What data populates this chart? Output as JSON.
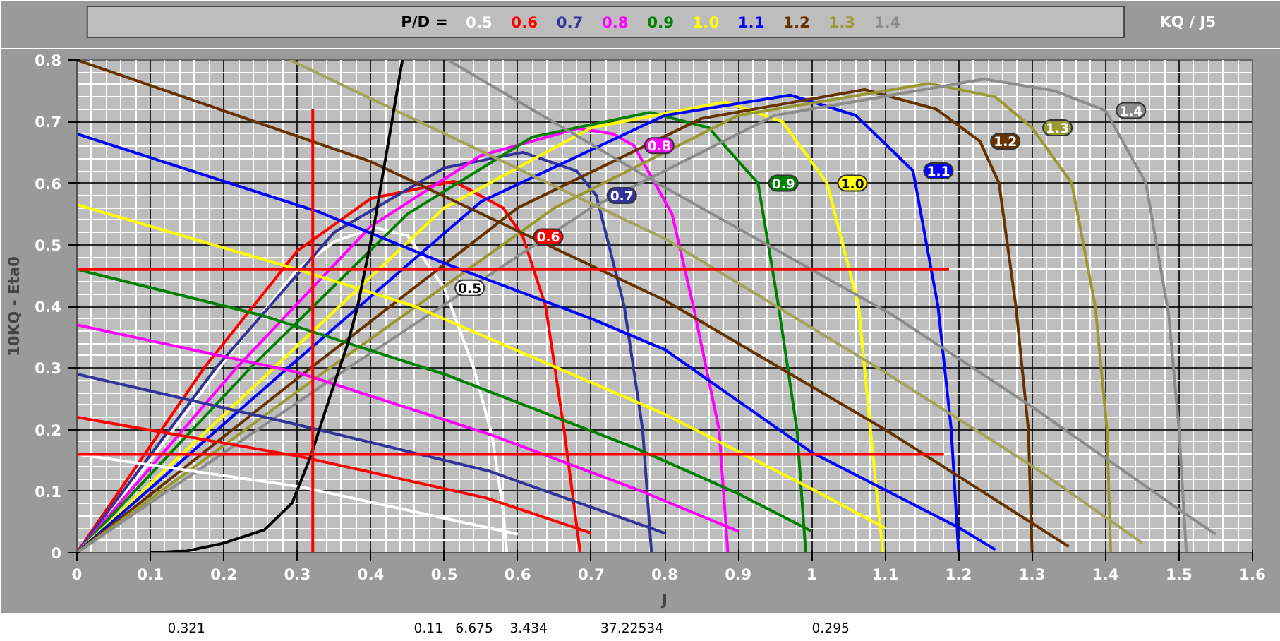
{
  "chart_data": {
    "type": "line",
    "xlabel": "J",
    "ylabel": "10KQ - Eta0",
    "legend_title": "P/D =",
    "legend": "top",
    "grid": true,
    "xlim": [
      0,
      1.6
    ],
    "ylim": [
      0,
      0.8
    ],
    "xticks": [
      0,
      0.1,
      0.2,
      0.3,
      0.4,
      0.5,
      0.6,
      0.7,
      0.8,
      0.9,
      1,
      1.1,
      1.2,
      1.3,
      1.4,
      1.5,
      1.6
    ],
    "yticks": [
      0,
      0.1,
      0.2,
      0.3,
      0.4,
      0.5,
      0.6,
      0.7,
      0.8
    ],
    "series": [
      {
        "name": "0.5",
        "color": "#ffffff",
        "x": [
          0,
          0.1,
          0.2,
          0.3,
          0.35,
          0.405,
          0.45,
          0.5,
          0.54,
          0.565,
          0.58,
          0.585
        ],
        "values": [
          0,
          0.15,
          0.31,
          0.46,
          0.505,
          0.528,
          0.515,
          0.43,
          0.3,
          0.19,
          0.07,
          0
        ]
      },
      {
        "name": "0.6",
        "color": "#ff0000",
        "x": [
          0,
          0.173,
          0.3,
          0.4,
          0.513,
          0.58,
          0.607,
          0.638,
          0.663,
          0.685
        ],
        "values": [
          0,
          0.3,
          0.49,
          0.575,
          0.603,
          0.56,
          0.513,
          0.4,
          0.2,
          0
        ]
      },
      {
        "name": "0.7",
        "color": "#333399",
        "x": [
          0,
          0.189,
          0.35,
          0.5,
          0.607,
          0.68,
          0.707,
          0.745,
          0.77,
          0.782
        ],
        "values": [
          0,
          0.3,
          0.52,
          0.625,
          0.65,
          0.62,
          0.58,
          0.4,
          0.2,
          0
        ]
      },
      {
        "name": "0.8",
        "color": "#ff00ff",
        "x": [
          0,
          0.217,
          0.4,
          0.55,
          0.682,
          0.73,
          0.758,
          0.81,
          0.839,
          0.874,
          0.886
        ],
        "values": [
          0,
          0.3,
          0.53,
          0.645,
          0.689,
          0.68,
          0.661,
          0.55,
          0.4,
          0.2,
          0
        ]
      },
      {
        "name": "0.9",
        "color": "#008000",
        "x": [
          0,
          0.236,
          0.45,
          0.62,
          0.78,
          0.86,
          0.927,
          0.955,
          0.98,
          0.992
        ],
        "values": [
          0,
          0.3,
          0.55,
          0.675,
          0.715,
          0.69,
          0.6,
          0.4,
          0.2,
          0
        ]
      },
      {
        "name": "1.0",
        "color": "#ffff00",
        "x": [
          0,
          0.268,
          0.5,
          0.7,
          0.883,
          0.96,
          1.021,
          1.064,
          1.08,
          1.097
        ],
        "values": [
          0,
          0.3,
          0.56,
          0.69,
          0.732,
          0.7,
          0.6,
          0.4,
          0.2,
          0
        ]
      },
      {
        "name": "1.1",
        "color": "#0000ff",
        "x": [
          0,
          0.287,
          0.55,
          0.8,
          0.971,
          1.06,
          1.138,
          1.172,
          1.19,
          1.2
        ],
        "values": [
          0,
          0.3,
          0.57,
          0.71,
          0.743,
          0.71,
          0.62,
          0.4,
          0.2,
          0
        ]
      },
      {
        "name": "1.2",
        "color": "#663300",
        "x": [
          0,
          0.318,
          0.6,
          0.85,
          1.072,
          1.17,
          1.229,
          1.255,
          1.278,
          1.295,
          1.3
        ],
        "values": [
          0,
          0.3,
          0.56,
          0.705,
          0.752,
          0.72,
          0.668,
          0.6,
          0.4,
          0.2,
          0
        ]
      },
      {
        "name": "1.3",
        "color": "#999933",
        "x": [
          0,
          0.344,
          0.65,
          0.9,
          1.16,
          1.25,
          1.3,
          1.354,
          1.386,
          1.402,
          1.407
        ],
        "values": [
          0,
          0.3,
          0.56,
          0.71,
          0.762,
          0.74,
          0.69,
          0.6,
          0.4,
          0.2,
          0
        ]
      },
      {
        "name": "1.4",
        "color": "#8c8c8c",
        "x": [
          0,
          0.369,
          0.7,
          0.95,
          1.235,
          1.33,
          1.4,
          1.455,
          1.486,
          1.5,
          1.51
        ],
        "values": [
          0,
          0.3,
          0.56,
          0.71,
          0.769,
          0.75,
          0.718,
          0.6,
          0.386,
          0.2,
          0
        ]
      },
      {
        "color": "#ffffff",
        "x": [
          0,
          0.305,
          0.6
        ],
        "values": [
          0.16,
          0.107,
          0.03
        ]
      },
      {
        "color": "#ff0000",
        "x": [
          0,
          0.305,
          0.557,
          0.7
        ],
        "values": [
          0.22,
          0.156,
          0.089,
          0.032
        ]
      },
      {
        "color": "#333399",
        "x": [
          0,
          0.3,
          0.56,
          0.8
        ],
        "values": [
          0.29,
          0.208,
          0.133,
          0.032
        ]
      },
      {
        "color": "#ff00ff",
        "x": [
          0,
          0.3,
          0.56,
          0.76,
          0.9
        ],
        "values": [
          0.37,
          0.293,
          0.193,
          0.104,
          0.035
        ]
      },
      {
        "color": "#008000",
        "x": [
          0,
          0.25,
          0.5,
          0.76,
          0.9,
          1.0
        ],
        "values": [
          0.46,
          0.386,
          0.29,
          0.17,
          0.096,
          0.035
        ]
      },
      {
        "color": "#ffff00",
        "x": [
          0,
          0.3,
          0.46,
          0.8,
          1.0,
          1.1
        ],
        "values": [
          0.565,
          0.46,
          0.4,
          0.225,
          0.104,
          0.04
        ]
      },
      {
        "color": "#0000ff",
        "x": [
          0,
          0.33,
          0.5,
          0.7,
          0.8,
          1.0,
          1.2,
          1.25
        ],
        "values": [
          0.68,
          0.553,
          0.47,
          0.38,
          0.33,
          0.163,
          0.041,
          0.005
        ]
      },
      {
        "color": "#663300",
        "x": [
          0,
          0.4,
          0.8,
          1.1,
          1.35
        ],
        "values": [
          0.8,
          0.635,
          0.41,
          0.2,
          0.01
        ]
      },
      {
        "color": "#a3a35c",
        "x": [
          0.29,
          0.8,
          1.1,
          1.3,
          1.45
        ],
        "values": [
          0.8,
          0.51,
          0.293,
          0.141,
          0.016
        ]
      },
      {
        "color": "#8c8c8c",
        "x": [
          0.505,
          0.79,
          1.11,
          1.3,
          1.5,
          1.55
        ],
        "values": [
          0.8,
          0.6,
          0.386,
          0.237,
          0.07,
          0.03
        ]
      },
      {
        "color": "#000000",
        "x": [
          0.1,
          0.15,
          0.198,
          0.255,
          0.293,
          0.318,
          0.344,
          0.369,
          0.382,
          0.405,
          0.443
        ],
        "values": [
          0,
          0.003,
          0.015,
          0.037,
          0.081,
          0.156,
          0.252,
          0.341,
          0.4,
          0.535,
          0.8
        ]
      },
      {
        "color": "#ff0000",
        "x": [
          0,
          1.187
        ],
        "values": [
          0.46,
          0.46
        ]
      },
      {
        "color": "#ff0000",
        "x": [
          0,
          1.18
        ],
        "values": [
          0.16,
          0.16
        ]
      },
      {
        "color": "#ff0000",
        "x": [
          0.321,
          0.321
        ],
        "values": [
          0,
          0.72
        ]
      }
    ],
    "annotations": [
      "KQ / J5",
      "0.321",
      "0.11",
      "6.675",
      "3.434",
      "37.22534",
      "0.295"
    ]
  }
}
